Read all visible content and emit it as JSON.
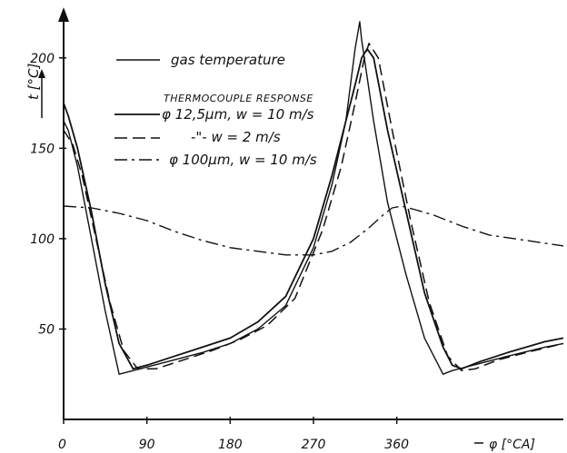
{
  "chart_data": {
    "type": "line",
    "title": "",
    "xlabel": "φ [°CA]",
    "ylabel": "t [°C]",
    "xlim": [
      0,
      540
    ],
    "ylim": [
      0,
      225
    ],
    "x_ticks": [
      "0",
      "90",
      "180",
      "270",
      "360"
    ],
    "y_ticks": [
      "50",
      "100",
      "150",
      "200"
    ],
    "x_tick_values": [
      0,
      90,
      180,
      270,
      360
    ],
    "y_tick_values": [
      50,
      100,
      150,
      200
    ],
    "legend_header": "THERMOCOUPLE RESPONSE",
    "legend": [
      "gas temperature",
      "φ 12,5μm, w = 10 m/s",
      "-\"-   w = 2 m/s",
      "φ 100μm, w = 10 m/s"
    ],
    "series": [
      {
        "name": "gas temperature",
        "style": "solid",
        "x": [
          0,
          5,
          15,
          30,
          45,
          60,
          90,
          120,
          150,
          180,
          210,
          240,
          270,
          290,
          305,
          315,
          320,
          322,
          335,
          350,
          370,
          390,
          410,
          420,
          450,
          480,
          520,
          540
        ],
        "y": [
          165,
          160,
          140,
          100,
          60,
          25,
          29,
          33,
          37,
          42,
          50,
          63,
          95,
          130,
          165,
          205,
          220,
          210,
          165,
          120,
          80,
          45,
          25,
          27,
          31,
          35,
          40,
          42
        ]
      },
      {
        "name": "φ 12,5μm, w = 10 m/s",
        "style": "solid",
        "x": [
          0,
          5,
          15,
          30,
          45,
          60,
          75,
          90,
          120,
          150,
          180,
          210,
          240,
          270,
          290,
          305,
          315,
          322,
          328,
          335,
          350,
          370,
          390,
          410,
          420,
          430,
          450,
          480,
          520,
          540
        ],
        "y": [
          175,
          168,
          150,
          115,
          75,
          42,
          28,
          30,
          35,
          40,
          45,
          54,
          68,
          100,
          135,
          165,
          185,
          200,
          205,
          200,
          160,
          115,
          70,
          40,
          30,
          28,
          32,
          37,
          43,
          45
        ]
      },
      {
        "name": "-\"-   w = 2 m/s",
        "style": "dashed",
        "x": [
          0,
          10,
          20,
          35,
          50,
          65,
          80,
          100,
          130,
          160,
          190,
          220,
          250,
          280,
          300,
          315,
          325,
          330,
          340,
          355,
          375,
          395,
          415,
          430,
          445,
          470,
          500,
          540
        ],
        "y": [
          160,
          152,
          135,
          100,
          65,
          38,
          28,
          28,
          33,
          38,
          44,
          52,
          67,
          105,
          140,
          175,
          200,
          208,
          200,
          160,
          110,
          65,
          35,
          27,
          28,
          33,
          37,
          42
        ]
      },
      {
        "name": "φ 100μm, w = 10 m/s",
        "style": "dash-dot",
        "x": [
          0,
          30,
          60,
          90,
          120,
          150,
          180,
          210,
          240,
          270,
          290,
          310,
          330,
          345,
          355,
          365,
          380,
          400,
          430,
          460,
          500,
          540
        ],
        "y": [
          118,
          117,
          114,
          110,
          104,
          99,
          95,
          93,
          91,
          91,
          93,
          98,
          106,
          113,
          117,
          118,
          116,
          113,
          107,
          102,
          99,
          96
        ]
      }
    ]
  }
}
